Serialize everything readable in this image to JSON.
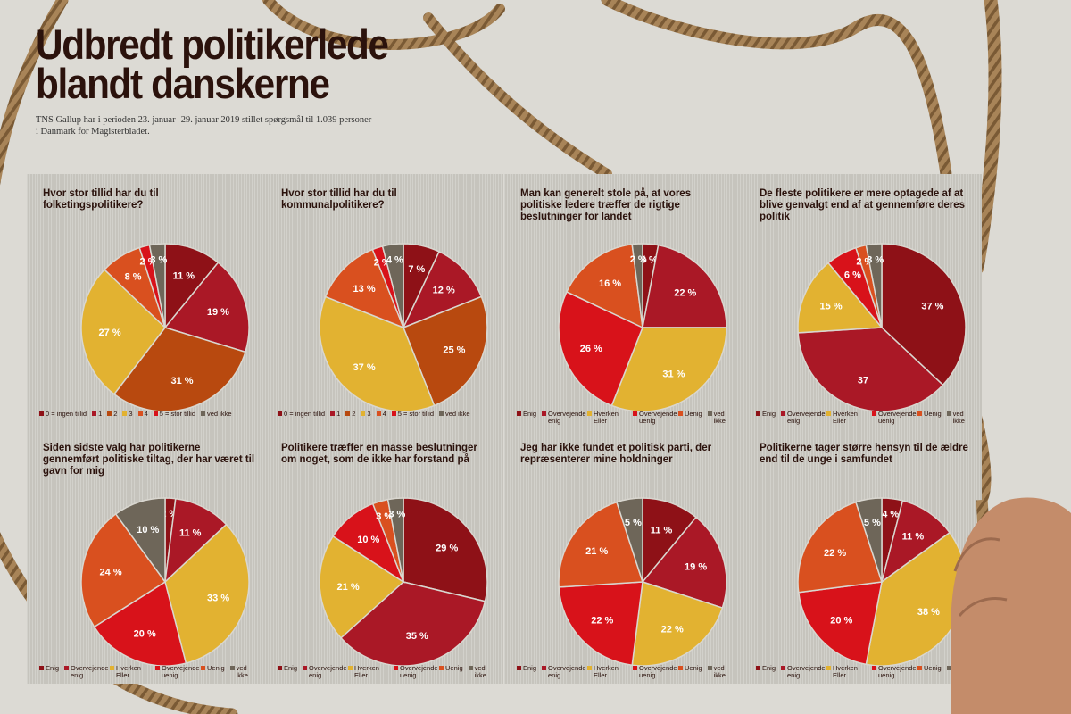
{
  "header": {
    "title_line1": "Udbredt politikerlede",
    "title_line2": "blandt danskerne",
    "subtitle": "TNS Gallup har i perioden 23. januar -29. januar 2019 stillet spørgsmål til 1.039 personer i Danmark for Magisterbladet."
  },
  "colors": {
    "title": "#2b120c",
    "panel": "#c6c4bd",
    "dark_red": "#8e1117",
    "red": "#aa1826",
    "bright_red": "#d8121a",
    "burnt_orange": "#b8490f",
    "yellow": "#e2b231",
    "orange": "#d9501f",
    "gray": "#6e6659"
  },
  "legends": {
    "scale": [
      "0 = ingen tillid",
      "1",
      "2",
      "3",
      "4",
      "5 = stor tillid",
      "ved ikke"
    ],
    "agree": [
      "Enig",
      "Overvejende enig",
      "Hverken Eller",
      "Overvejende uenig",
      "Uenig",
      "ved ikke"
    ]
  },
  "chart_data": [
    {
      "type": "pie",
      "title": "Hvor stor tillid har du til folketingspolitikere?",
      "legend": "scale",
      "categories": [
        "0 = ingen tillid",
        "1",
        "2",
        "3",
        "4",
        "5 = stor tillid",
        "ved ikke"
      ],
      "values": [
        11,
        19,
        31,
        27,
        8,
        2,
        3
      ],
      "labels": [
        "11 %",
        "19 %",
        "31 %",
        "27 %",
        "8 %",
        "2 %",
        "3 %"
      ],
      "colors": [
        "#8e1117",
        "#aa1826",
        "#b8490f",
        "#e2b231",
        "#d9501f",
        "#d8121a",
        "#6e6659"
      ]
    },
    {
      "type": "pie",
      "title": "Hvor stor tillid har du til kommunalpolitikere?",
      "legend": "scale",
      "categories": [
        "0 = ingen tillid",
        "1",
        "2",
        "3",
        "4",
        "5 = stor tillid",
        "ved ikke"
      ],
      "values": [
        7,
        12,
        25,
        37,
        13,
        2,
        4
      ],
      "labels": [
        "7 %",
        "12 %",
        "25 %",
        "37 %",
        "13 %",
        "2 %",
        "4 %"
      ],
      "colors": [
        "#8e1117",
        "#aa1826",
        "#b8490f",
        "#e2b231",
        "#d9501f",
        "#d8121a",
        "#6e6659"
      ]
    },
    {
      "type": "pie",
      "title": "Man kan generelt stole på, at vores politiske ledere træffer de rigtige beslutninger for landet",
      "legend": "agree",
      "categories": [
        "Enig",
        "Overvejende enig",
        "Hverken Eller",
        "Overvejende uenig",
        "Uenig",
        "ved ikke"
      ],
      "values": [
        3,
        22,
        31,
        26,
        16,
        2
      ],
      "labels": [
        "3 %",
        "22 %",
        "31 %",
        "26 %",
        "16 %",
        "2 %"
      ],
      "colors": [
        "#8e1117",
        "#aa1826",
        "#e2b231",
        "#d8121a",
        "#d9501f",
        "#6e6659"
      ]
    },
    {
      "type": "pie",
      "title": "De fleste politikere er mere optagede af at blive genvalgt end af at gennemføre deres politik",
      "legend": "agree",
      "categories": [
        "Enig",
        "Overvejende enig",
        "Hverken Eller",
        "Overvejende uenig",
        "Uenig",
        "ved ikke"
      ],
      "values": [
        37,
        37,
        15,
        6,
        2,
        3
      ],
      "labels": [
        "37 %",
        "37",
        "15 %",
        "6 %",
        "2 %",
        "3 %"
      ],
      "colors": [
        "#8e1117",
        "#aa1826",
        "#e2b231",
        "#d8121a",
        "#d9501f",
        "#6e6659"
      ]
    },
    {
      "type": "pie",
      "title": "Siden sidste valg har politikerne gennemført politiske tiltag, der har været til gavn for mig",
      "legend": "agree",
      "categories": [
        "Enig",
        "Overvejende enig",
        "Hverken Eller",
        "Overvejende uenig",
        "Uenig",
        "ved ikke"
      ],
      "values": [
        2,
        11,
        33,
        20,
        24,
        10
      ],
      "labels": [
        "2 %",
        "11 %",
        "33 %",
        "20 %",
        "24 %",
        "10 %"
      ],
      "colors": [
        "#8e1117",
        "#aa1826",
        "#e2b231",
        "#d8121a",
        "#d9501f",
        "#6e6659"
      ]
    },
    {
      "type": "pie",
      "title": "Politikere træffer en masse beslutninger om noget, som de ikke har forstand på",
      "legend": "agree",
      "categories": [
        "Enig",
        "Overvejende enig",
        "Hverken Eller",
        "Overvejende uenig",
        "Uenig",
        "ved ikke"
      ],
      "values": [
        29,
        35,
        21,
        10,
        3,
        3
      ],
      "labels": [
        "29 %",
        "35 %",
        "21 %",
        "10 %",
        "3 %",
        "3 %"
      ],
      "colors": [
        "#8e1117",
        "#aa1826",
        "#e2b231",
        "#d8121a",
        "#d9501f",
        "#6e6659"
      ]
    },
    {
      "type": "pie",
      "title": "Jeg har ikke fundet et politisk parti, der repræsenterer mine holdninger",
      "legend": "agree",
      "categories": [
        "Enig",
        "Overvejende enig",
        "Hverken Eller",
        "Overvejende uenig",
        "Uenig",
        "ved ikke"
      ],
      "values": [
        11,
        19,
        22,
        22,
        21,
        5
      ],
      "labels": [
        "11 %",
        "19 %",
        "22 %",
        "22 %",
        "21 %",
        "5 %"
      ],
      "colors": [
        "#8e1117",
        "#aa1826",
        "#e2b231",
        "#d8121a",
        "#d9501f",
        "#6e6659"
      ]
    },
    {
      "type": "pie",
      "title": "Politikerne tager større hensyn til de ældre end til de unge i samfundet",
      "legend": "agree",
      "categories": [
        "Enig",
        "Overvejende enig",
        "Hverken Eller",
        "Overvejende uenig",
        "Uenig",
        "ved ikke"
      ],
      "values": [
        4,
        11,
        38,
        20,
        22,
        5
      ],
      "labels": [
        "4 %",
        "11 %",
        "38 %",
        "20 %",
        "22 %",
        "5 %"
      ],
      "colors": [
        "#8e1117",
        "#aa1826",
        "#e2b231",
        "#d8121a",
        "#d9501f",
        "#6e6659"
      ]
    }
  ]
}
